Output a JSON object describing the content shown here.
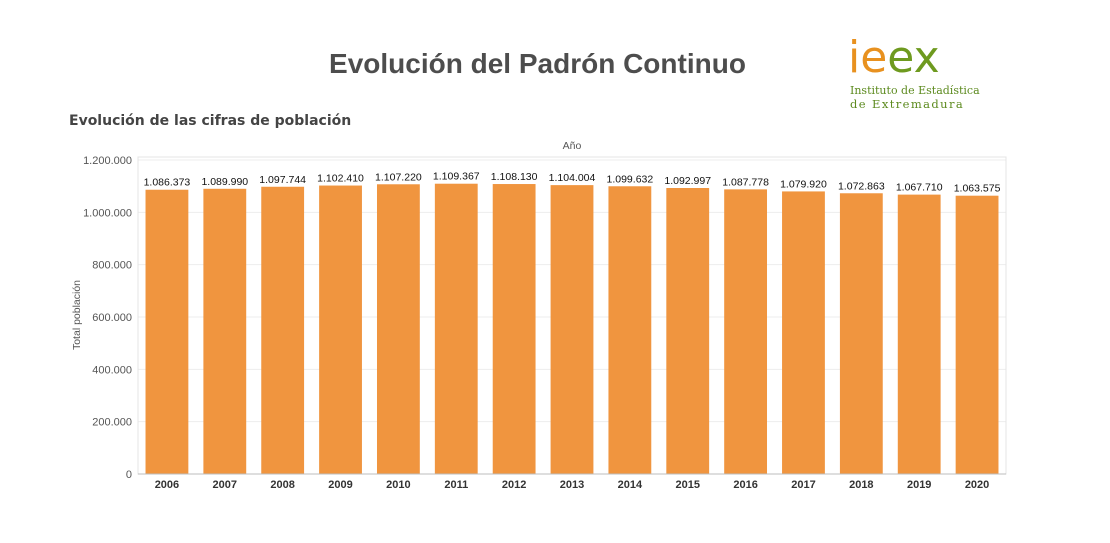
{
  "header": {
    "title": "Evolución del Padrón Continuo",
    "subtitle": "Evolución de las cifras de población"
  },
  "logo": {
    "mark_part1": "ie",
    "mark_part2": "ex",
    "line1": "Instituto de Estadística",
    "line2": "de Extremadura",
    "colors": {
      "orange": "#e8911f",
      "green": "#6e9a1f"
    }
  },
  "chart_data": {
    "type": "bar",
    "xlabel": "Año",
    "ylabel": "Total población",
    "categories": [
      "2006",
      "2007",
      "2008",
      "2009",
      "2010",
      "2011",
      "2012",
      "2013",
      "2014",
      "2015",
      "2016",
      "2017",
      "2018",
      "2019",
      "2020"
    ],
    "values": [
      1086373,
      1089990,
      1097744,
      1102410,
      1107220,
      1109367,
      1108130,
      1104004,
      1099632,
      1092997,
      1087778,
      1079920,
      1072863,
      1067710,
      1063575
    ],
    "value_labels": [
      "1.086.373",
      "1.089.990",
      "1.097.744",
      "1.102.410",
      "1.107.220",
      "1.109.367",
      "1.108.130",
      "1.104.004",
      "1.099.632",
      "1.092.997",
      "1.087.778",
      "1.079.920",
      "1.072.863",
      "1.067.710",
      "1.063.575"
    ],
    "yticks": [
      0,
      200000,
      400000,
      600000,
      800000,
      1000000,
      1200000
    ],
    "ytick_labels": [
      "0",
      "200.000",
      "400.000",
      "600.000",
      "800.000",
      "1.000.000",
      "1.200.000"
    ],
    "ylim": [
      0,
      1200000
    ],
    "grid": true,
    "bar_color": "#f0953f"
  }
}
